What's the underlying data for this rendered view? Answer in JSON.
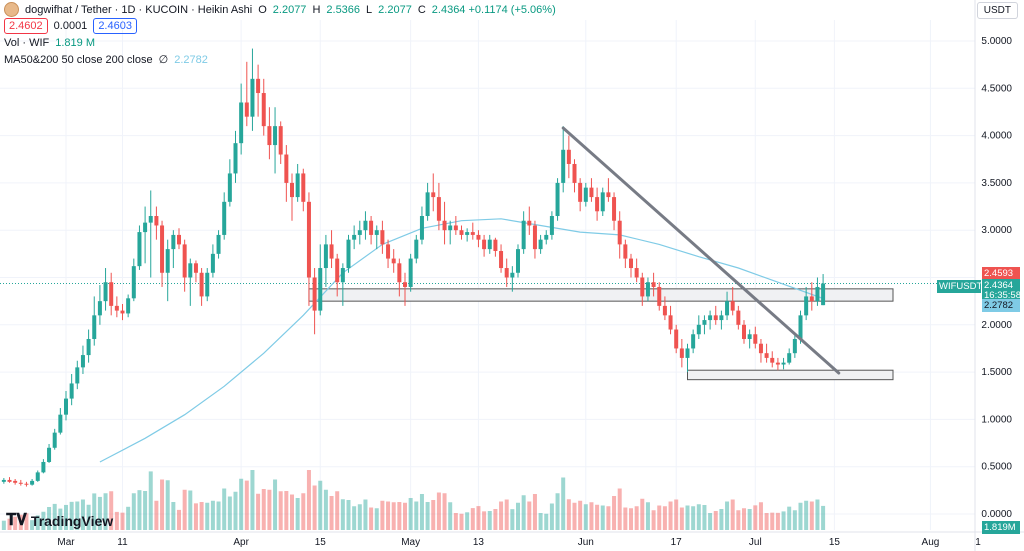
{
  "header": {
    "symbol_title": "dogwifhat / Tether · 1D · KUCOIN · Heikin Ashi",
    "ohlc": [
      {
        "k": "O",
        "v": "2.2077"
      },
      {
        "k": "H",
        "v": "2.5366"
      },
      {
        "k": "L",
        "v": "2.2077"
      },
      {
        "k": "C",
        "v": "2.4364 +0.1174 (+5.06%)"
      }
    ],
    "sell_price": "2.4602",
    "spread": "0.0001",
    "buy_price": "2.4603",
    "volume_label": "Vol · WIF",
    "volume_value": "1.819 M",
    "ma_label": "MA50&200 50 close 200 close",
    "ma_glyph": "∅",
    "ma_value": "2.2782",
    "currency": "USDT"
  },
  "price_scale": {
    "labels": [
      "5.0000",
      "4.5000",
      "4.0000",
      "3.5000",
      "3.0000",
      "2.5000",
      "2.0000",
      "1.5000",
      "1.0000",
      "0.5000",
      "0.0000"
    ]
  },
  "time_scale": {
    "labels": [
      "Mar",
      "11",
      "Apr",
      "15",
      "May",
      "13",
      "Jun",
      "17",
      "Jul",
      "15",
      "Aug"
    ],
    "footer_labels": [
      "1"
    ]
  },
  "price_tags": {
    "high_value": "2.4593",
    "symbol_tag": "WIFUSDT",
    "last_value": "2.4364",
    "countdown": "16:35:58",
    "ma_value": "2.2782",
    "volume_value": "1.819M"
  },
  "branding": {
    "logo_text": "TradingView"
  },
  "colors": {
    "up": "#26a69a",
    "down": "#ef5350",
    "ma": "#7fcbe6",
    "trendline": "#777b85",
    "rect_fill": "#f0f1f3",
    "rect_stroke": "#555555"
  },
  "chart_data": {
    "type": "candlestick",
    "y_axis_range": [
      0,
      5.2
    ],
    "candles": [
      {
        "x": "Feb 19",
        "o": 0.34,
        "h": 0.38,
        "l": 0.32,
        "c": 0.36
      },
      {
        "x": "Feb 20",
        "o": 0.36,
        "h": 0.39,
        "l": 0.33,
        "c": 0.34
      },
      {
        "x": "Feb 21",
        "o": 0.35,
        "h": 0.37,
        "l": 0.31,
        "c": 0.33
      },
      {
        "x": "Feb 22",
        "o": 0.33,
        "h": 0.36,
        "l": 0.3,
        "c": 0.32
      },
      {
        "x": "Feb 23",
        "o": 0.32,
        "h": 0.34,
        "l": 0.29,
        "c": 0.31
      },
      {
        "x": "Feb 24",
        "o": 0.31,
        "h": 0.37,
        "l": 0.3,
        "c": 0.35
      },
      {
        "x": "Feb 25",
        "o": 0.35,
        "h": 0.46,
        "l": 0.34,
        "c": 0.44
      },
      {
        "x": "Feb 26",
        "o": 0.44,
        "h": 0.58,
        "l": 0.43,
        "c": 0.55
      },
      {
        "x": "Feb 27",
        "o": 0.55,
        "h": 0.74,
        "l": 0.54,
        "c": 0.7
      },
      {
        "x": "Feb 28",
        "o": 0.7,
        "h": 0.9,
        "l": 0.68,
        "c": 0.86
      },
      {
        "x": "Feb 29",
        "o": 0.86,
        "h": 1.12,
        "l": 0.84,
        "c": 1.05
      },
      {
        "x": "Mar 1",
        "o": 1.05,
        "h": 1.3,
        "l": 0.99,
        "c": 1.22
      },
      {
        "x": "Mar 2",
        "o": 1.22,
        "h": 1.48,
        "l": 1.15,
        "c": 1.38
      },
      {
        "x": "Mar 3",
        "o": 1.38,
        "h": 1.62,
        "l": 1.32,
        "c": 1.55
      },
      {
        "x": "Mar 4",
        "o": 1.55,
        "h": 1.78,
        "l": 1.48,
        "c": 1.68
      },
      {
        "x": "Mar 5",
        "o": 1.68,
        "h": 1.95,
        "l": 1.6,
        "c": 1.85
      },
      {
        "x": "Mar 6",
        "o": 1.85,
        "h": 2.3,
        "l": 1.78,
        "c": 2.1
      },
      {
        "x": "Mar 7",
        "o": 2.1,
        "h": 2.42,
        "l": 2.0,
        "c": 2.25
      },
      {
        "x": "Mar 8",
        "o": 2.25,
        "h": 2.6,
        "l": 2.15,
        "c": 2.45
      },
      {
        "x": "Mar 9",
        "o": 2.45,
        "h": 2.55,
        "l": 2.1,
        "c": 2.2
      },
      {
        "x": "Mar 10",
        "o": 2.2,
        "h": 2.3,
        "l": 2.08,
        "c": 2.15
      },
      {
        "x": "Mar 11",
        "o": 2.15,
        "h": 2.22,
        "l": 2.05,
        "c": 2.12
      },
      {
        "x": "Mar 12",
        "o": 2.12,
        "h": 2.32,
        "l": 2.08,
        "c": 2.28
      },
      {
        "x": "Mar 13",
        "o": 2.28,
        "h": 2.7,
        "l": 2.25,
        "c": 2.62
      },
      {
        "x": "Mar 14",
        "o": 2.62,
        "h": 3.05,
        "l": 2.58,
        "c": 2.98
      },
      {
        "x": "Mar 15",
        "o": 2.98,
        "h": 3.25,
        "l": 2.65,
        "c": 3.08
      },
      {
        "x": "Mar 16",
        "o": 3.08,
        "h": 3.42,
        "l": 2.5,
        "c": 3.15
      },
      {
        "x": "Mar 17",
        "o": 3.15,
        "h": 3.25,
        "l": 2.9,
        "c": 3.05
      },
      {
        "x": "Mar 18",
        "o": 3.05,
        "h": 3.1,
        "l": 2.4,
        "c": 2.55
      },
      {
        "x": "Mar 19",
        "o": 2.55,
        "h": 2.9,
        "l": 2.25,
        "c": 2.8
      },
      {
        "x": "Mar 20",
        "o": 2.8,
        "h": 3.0,
        "l": 2.6,
        "c": 2.95
      },
      {
        "x": "Mar 21",
        "o": 2.95,
        "h": 3.02,
        "l": 2.8,
        "c": 2.85
      },
      {
        "x": "Mar 22",
        "o": 2.85,
        "h": 2.9,
        "l": 2.35,
        "c": 2.5
      },
      {
        "x": "Mar 23",
        "o": 2.5,
        "h": 2.7,
        "l": 2.2,
        "c": 2.65
      },
      {
        "x": "Mar 24",
        "o": 2.65,
        "h": 2.68,
        "l": 2.45,
        "c": 2.55
      },
      {
        "x": "Mar 25",
        "o": 2.55,
        "h": 2.6,
        "l": 2.2,
        "c": 2.3
      },
      {
        "x": "Mar 26",
        "o": 2.3,
        "h": 2.6,
        "l": 2.25,
        "c": 2.55
      },
      {
        "x": "Mar 27",
        "o": 2.55,
        "h": 2.85,
        "l": 2.5,
        "c": 2.75
      },
      {
        "x": "Mar 28",
        "o": 2.75,
        "h": 3.0,
        "l": 2.7,
        "c": 2.95
      },
      {
        "x": "Mar 29",
        "o": 2.95,
        "h": 3.4,
        "l": 2.9,
        "c": 3.3
      },
      {
        "x": "Mar 30",
        "o": 3.3,
        "h": 3.75,
        "l": 3.25,
        "c": 3.6
      },
      {
        "x": "Mar 31",
        "o": 3.6,
        "h": 4.05,
        "l": 3.5,
        "c": 3.92
      },
      {
        "x": "Apr 1",
        "o": 3.92,
        "h": 4.55,
        "l": 3.8,
        "c": 4.35
      },
      {
        "x": "Apr 2",
        "o": 4.35,
        "h": 4.78,
        "l": 4.1,
        "c": 4.2
      },
      {
        "x": "Apr 3",
        "o": 4.2,
        "h": 4.92,
        "l": 4.05,
        "c": 4.6
      },
      {
        "x": "Apr 4",
        "o": 4.6,
        "h": 4.75,
        "l": 4.2,
        "c": 4.45
      },
      {
        "x": "Apr 5",
        "o": 4.45,
        "h": 4.6,
        "l": 4.0,
        "c": 4.1
      },
      {
        "x": "Apr 6",
        "o": 4.1,
        "h": 4.3,
        "l": 3.75,
        "c": 3.9
      },
      {
        "x": "Apr 7",
        "o": 3.9,
        "h": 4.3,
        "l": 3.6,
        "c": 4.1
      },
      {
        "x": "Apr 8",
        "o": 4.1,
        "h": 4.15,
        "l": 3.7,
        "c": 3.8
      },
      {
        "x": "Apr 9",
        "o": 3.8,
        "h": 3.9,
        "l": 3.3,
        "c": 3.5
      },
      {
        "x": "Apr 10",
        "o": 3.5,
        "h": 3.6,
        "l": 3.1,
        "c": 3.35
      },
      {
        "x": "Apr 11",
        "o": 3.35,
        "h": 3.7,
        "l": 3.3,
        "c": 3.6
      },
      {
        "x": "Apr 12",
        "o": 3.6,
        "h": 3.65,
        "l": 3.2,
        "c": 3.3
      },
      {
        "x": "Apr 13",
        "o": 3.3,
        "h": 3.4,
        "l": 2.2,
        "c": 2.5
      },
      {
        "x": "Apr 14",
        "o": 2.5,
        "h": 2.6,
        "l": 1.9,
        "c": 2.15
      },
      {
        "x": "Apr 15",
        "o": 2.15,
        "h": 2.85,
        "l": 2.1,
        "c": 2.6
      },
      {
        "x": "Apr 16",
        "o": 2.6,
        "h": 2.95,
        "l": 2.4,
        "c": 2.85
      },
      {
        "x": "Apr 17",
        "o": 2.85,
        "h": 3.0,
        "l": 2.6,
        "c": 2.7
      },
      {
        "x": "Apr 18",
        "o": 2.7,
        "h": 2.75,
        "l": 2.3,
        "c": 2.45
      },
      {
        "x": "Apr 19",
        "o": 2.45,
        "h": 2.65,
        "l": 2.2,
        "c": 2.6
      },
      {
        "x": "Apr 20",
        "o": 2.6,
        "h": 2.95,
        "l": 2.55,
        "c": 2.9
      },
      {
        "x": "Apr 21",
        "o": 2.9,
        "h": 3.05,
        "l": 2.8,
        "c": 2.95
      },
      {
        "x": "Apr 22",
        "o": 2.95,
        "h": 3.1,
        "l": 2.85,
        "c": 3.0
      },
      {
        "x": "Apr 23",
        "o": 3.0,
        "h": 3.2,
        "l": 2.9,
        "c": 3.1
      },
      {
        "x": "Apr 24",
        "o": 3.1,
        "h": 3.15,
        "l": 2.85,
        "c": 2.95
      },
      {
        "x": "Apr 25",
        "o": 2.95,
        "h": 3.05,
        "l": 2.8,
        "c": 3.0
      },
      {
        "x": "Apr 26",
        "o": 3.0,
        "h": 3.1,
        "l": 2.75,
        "c": 2.85
      },
      {
        "x": "Apr 27",
        "o": 2.85,
        "h": 2.9,
        "l": 2.6,
        "c": 2.7
      },
      {
        "x": "Apr 28",
        "o": 2.7,
        "h": 2.8,
        "l": 2.55,
        "c": 2.65
      },
      {
        "x": "Apr 29",
        "o": 2.65,
        "h": 2.7,
        "l": 2.3,
        "c": 2.45
      },
      {
        "x": "Apr 30",
        "o": 2.45,
        "h": 2.55,
        "l": 2.2,
        "c": 2.4
      },
      {
        "x": "May 1",
        "o": 2.4,
        "h": 2.75,
        "l": 2.35,
        "c": 2.7
      },
      {
        "x": "May 2",
        "o": 2.7,
        "h": 2.95,
        "l": 2.65,
        "c": 2.9
      },
      {
        "x": "May 3",
        "o": 2.9,
        "h": 3.25,
        "l": 2.85,
        "c": 3.15
      },
      {
        "x": "May 4",
        "o": 3.15,
        "h": 3.5,
        "l": 3.1,
        "c": 3.4
      },
      {
        "x": "May 5",
        "o": 3.4,
        "h": 3.6,
        "l": 3.2,
        "c": 3.35
      },
      {
        "x": "May 6",
        "o": 3.35,
        "h": 3.5,
        "l": 3.0,
        "c": 3.1
      },
      {
        "x": "May 7",
        "o": 3.1,
        "h": 3.3,
        "l": 2.85,
        "c": 3.0
      },
      {
        "x": "May 8",
        "o": 3.0,
        "h": 3.1,
        "l": 2.85,
        "c": 3.05
      },
      {
        "x": "May 9",
        "o": 3.05,
        "h": 3.15,
        "l": 2.95,
        "c": 3.0
      },
      {
        "x": "May 10",
        "o": 3.0,
        "h": 3.05,
        "l": 2.9,
        "c": 2.95
      },
      {
        "x": "May 11",
        "o": 2.95,
        "h": 3.02,
        "l": 2.88,
        "c": 2.98
      },
      {
        "x": "May 12",
        "o": 2.98,
        "h": 3.08,
        "l": 2.9,
        "c": 2.95
      },
      {
        "x": "May 13",
        "o": 2.95,
        "h": 3.0,
        "l": 2.82,
        "c": 2.9
      },
      {
        "x": "May 14",
        "o": 2.9,
        "h": 2.95,
        "l": 2.72,
        "c": 2.8
      },
      {
        "x": "May 15",
        "o": 2.8,
        "h": 2.95,
        "l": 2.75,
        "c": 2.9
      },
      {
        "x": "May 16",
        "o": 2.9,
        "h": 2.92,
        "l": 2.72,
        "c": 2.78
      },
      {
        "x": "May 17",
        "o": 2.78,
        "h": 2.85,
        "l": 2.55,
        "c": 2.6
      },
      {
        "x": "May 18",
        "o": 2.6,
        "h": 2.7,
        "l": 2.4,
        "c": 2.5
      },
      {
        "x": "May 19",
        "o": 2.5,
        "h": 2.62,
        "l": 2.35,
        "c": 2.55
      },
      {
        "x": "May 20",
        "o": 2.55,
        "h": 2.85,
        "l": 2.5,
        "c": 2.8
      },
      {
        "x": "May 21",
        "o": 2.8,
        "h": 3.2,
        "l": 2.75,
        "c": 3.1
      },
      {
        "x": "May 22",
        "o": 3.1,
        "h": 3.25,
        "l": 2.95,
        "c": 3.05
      },
      {
        "x": "May 23",
        "o": 3.05,
        "h": 3.1,
        "l": 2.7,
        "c": 2.8
      },
      {
        "x": "May 24",
        "o": 2.8,
        "h": 2.95,
        "l": 2.75,
        "c": 2.9
      },
      {
        "x": "May 25",
        "o": 2.9,
        "h": 3.0,
        "l": 2.85,
        "c": 2.95
      },
      {
        "x": "May 26",
        "o": 2.95,
        "h": 3.2,
        "l": 2.9,
        "c": 3.15
      },
      {
        "x": "May 27",
        "o": 3.15,
        "h": 3.55,
        "l": 3.1,
        "c": 3.5
      },
      {
        "x": "May 28",
        "o": 3.5,
        "h": 4.1,
        "l": 3.4,
        "c": 3.85
      },
      {
        "x": "May 29",
        "o": 3.85,
        "h": 4.0,
        "l": 3.55,
        "c": 3.7
      },
      {
        "x": "May 30",
        "o": 3.7,
        "h": 3.75,
        "l": 3.4,
        "c": 3.5
      },
      {
        "x": "May 31",
        "o": 3.5,
        "h": 3.55,
        "l": 3.2,
        "c": 3.3
      },
      {
        "x": "Jun 1",
        "o": 3.3,
        "h": 3.5,
        "l": 3.25,
        "c": 3.45
      },
      {
        "x": "Jun 2",
        "o": 3.45,
        "h": 3.55,
        "l": 3.3,
        "c": 3.35
      },
      {
        "x": "Jun 3",
        "o": 3.35,
        "h": 3.45,
        "l": 3.1,
        "c": 3.2
      },
      {
        "x": "Jun 4",
        "o": 3.2,
        "h": 3.45,
        "l": 3.15,
        "c": 3.4
      },
      {
        "x": "Jun 5",
        "o": 3.4,
        "h": 3.55,
        "l": 3.3,
        "c": 3.35
      },
      {
        "x": "Jun 6",
        "o": 3.35,
        "h": 3.4,
        "l": 3.0,
        "c": 3.1
      },
      {
        "x": "Jun 7",
        "o": 3.1,
        "h": 3.2,
        "l": 2.7,
        "c": 2.85
      },
      {
        "x": "Jun 8",
        "o": 2.85,
        "h": 2.9,
        "l": 2.6,
        "c": 2.7
      },
      {
        "x": "Jun 9",
        "o": 2.7,
        "h": 2.75,
        "l": 2.5,
        "c": 2.6
      },
      {
        "x": "Jun 10",
        "o": 2.6,
        "h": 2.7,
        "l": 2.45,
        "c": 2.5
      },
      {
        "x": "Jun 11",
        "o": 2.5,
        "h": 2.55,
        "l": 2.2,
        "c": 2.3
      },
      {
        "x": "Jun 12",
        "o": 2.3,
        "h": 2.5,
        "l": 2.25,
        "c": 2.45
      },
      {
        "x": "Jun 13",
        "o": 2.45,
        "h": 2.55,
        "l": 2.3,
        "c": 2.4
      },
      {
        "x": "Jun 14",
        "o": 2.4,
        "h": 2.45,
        "l": 2.15,
        "c": 2.2
      },
      {
        "x": "Jun 15",
        "o": 2.2,
        "h": 2.3,
        "l": 2.05,
        "c": 2.1
      },
      {
        "x": "Jun 16",
        "o": 2.1,
        "h": 2.2,
        "l": 1.9,
        "c": 1.95
      },
      {
        "x": "Jun 17",
        "o": 1.95,
        "h": 2.0,
        "l": 1.7,
        "c": 1.75
      },
      {
        "x": "Jun 18",
        "o": 1.75,
        "h": 1.85,
        "l": 1.55,
        "c": 1.65
      },
      {
        "x": "Jun 19",
        "o": 1.65,
        "h": 1.8,
        "l": 1.5,
        "c": 1.75
      },
      {
        "x": "Jun 20",
        "o": 1.75,
        "h": 1.95,
        "l": 1.7,
        "c": 1.9
      },
      {
        "x": "Jun 21",
        "o": 1.9,
        "h": 2.1,
        "l": 1.85,
        "c": 2.0
      },
      {
        "x": "Jun 22",
        "o": 2.0,
        "h": 2.1,
        "l": 1.9,
        "c": 2.05
      },
      {
        "x": "Jun 23",
        "o": 2.05,
        "h": 2.15,
        "l": 1.95,
        "c": 2.1
      },
      {
        "x": "Jun 24",
        "o": 2.1,
        "h": 2.2,
        "l": 2.0,
        "c": 2.05
      },
      {
        "x": "Jun 25",
        "o": 2.05,
        "h": 2.15,
        "l": 1.95,
        "c": 2.1
      },
      {
        "x": "Jun 26",
        "o": 2.1,
        "h": 2.35,
        "l": 2.05,
        "c": 2.25
      },
      {
        "x": "Jun 27",
        "o": 2.25,
        "h": 2.4,
        "l": 2.1,
        "c": 2.15
      },
      {
        "x": "Jun 28",
        "o": 2.15,
        "h": 2.2,
        "l": 1.95,
        "c": 2.0
      },
      {
        "x": "Jun 29",
        "o": 2.0,
        "h": 2.05,
        "l": 1.8,
        "c": 1.85
      },
      {
        "x": "Jun 30",
        "o": 1.85,
        "h": 1.95,
        "l": 1.75,
        "c": 1.9
      },
      {
        "x": "Jul 1",
        "o": 1.9,
        "h": 1.98,
        "l": 1.75,
        "c": 1.8
      },
      {
        "x": "Jul 2",
        "o": 1.8,
        "h": 1.85,
        "l": 1.6,
        "c": 1.7
      },
      {
        "x": "Jul 3",
        "o": 1.7,
        "h": 1.8,
        "l": 1.6,
        "c": 1.65
      },
      {
        "x": "Jul 4",
        "o": 1.65,
        "h": 1.72,
        "l": 1.55,
        "c": 1.6
      },
      {
        "x": "Jul 5",
        "o": 1.6,
        "h": 1.65,
        "l": 1.52,
        "c": 1.58
      },
      {
        "x": "Jul 6",
        "o": 1.58,
        "h": 1.65,
        "l": 1.53,
        "c": 1.6
      },
      {
        "x": "Jul 7",
        "o": 1.6,
        "h": 1.75,
        "l": 1.58,
        "c": 1.7
      },
      {
        "x": "Jul 8",
        "o": 1.7,
        "h": 1.9,
        "l": 1.65,
        "c": 1.85
      },
      {
        "x": "Jul 9",
        "o": 1.85,
        "h": 2.15,
        "l": 1.8,
        "c": 2.1
      },
      {
        "x": "Jul 10",
        "o": 2.1,
        "h": 2.4,
        "l": 2.05,
        "c": 2.3
      },
      {
        "x": "Jul 11",
        "o": 2.3,
        "h": 2.45,
        "l": 2.15,
        "c": 2.25
      },
      {
        "x": "Jul 12",
        "o": 2.25,
        "h": 2.5,
        "l": 2.2,
        "c": 2.4
      },
      {
        "x": "Jul 13",
        "o": 2.2077,
        "h": 2.5366,
        "l": 2.2077,
        "c": 2.4364
      }
    ],
    "volume_note": "volume histogram in lower pane",
    "ma50": [
      {
        "x": "Mar 7",
        "y": 0.55
      },
      {
        "x": "Mar 15",
        "y": 0.8
      },
      {
        "x": "Mar 22",
        "y": 1.05
      },
      {
        "x": "Mar 29",
        "y": 1.35
      },
      {
        "x": "Apr 5",
        "y": 1.7
      },
      {
        "x": "Apr 12",
        "y": 2.1
      },
      {
        "x": "Apr 19",
        "y": 2.55
      },
      {
        "x": "Apr 26",
        "y": 2.85
      },
      {
        "x": "May 3",
        "y": 3.02
      },
      {
        "x": "May 10",
        "y": 3.1
      },
      {
        "x": "May 17",
        "y": 3.12
      },
      {
        "x": "May 24",
        "y": 3.05
      },
      {
        "x": "May 31",
        "y": 2.98
      },
      {
        "x": "Jun 7",
        "y": 2.95
      },
      {
        "x": "Jun 14",
        "y": 2.85
      },
      {
        "x": "Jun 21",
        "y": 2.72
      },
      {
        "x": "Jun 28",
        "y": 2.6
      },
      {
        "x": "Jul 5",
        "y": 2.45
      },
      {
        "x": "Jul 13",
        "y": 2.2782
      }
    ],
    "trendline": [
      {
        "x": "May 28",
        "y": 4.08
      },
      {
        "x": "Jul 14",
        "y": 1.49
      }
    ],
    "zones": [
      {
        "x_start": "Apr 13",
        "x_end": "Jul 13",
        "y_low": 2.25,
        "y_high": 2.38
      },
      {
        "x_start": "Jun 19",
        "x_end": "Jul 13",
        "y_low": 1.42,
        "y_high": 1.52
      }
    ]
  }
}
